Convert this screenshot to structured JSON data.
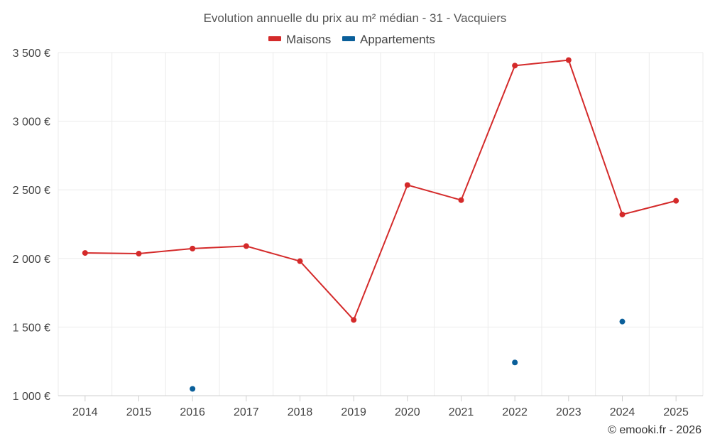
{
  "chart_data": {
    "type": "line",
    "title": "Evolution annuelle du prix au m² médian - 31 - Vacquiers",
    "categories": [
      "2014",
      "2015",
      "2016",
      "2017",
      "2018",
      "2019",
      "2020",
      "2021",
      "2022",
      "2023",
      "2024",
      "2025"
    ],
    "y_tick_labels": [
      "1 000 €",
      "1 500 €",
      "2 000 €",
      "2 500 €",
      "3 000 €",
      "3 500 €"
    ],
    "y_ticks": [
      1000,
      1500,
      2000,
      2500,
      3000,
      3500
    ],
    "ylim": [
      1000,
      3500
    ],
    "grid": true,
    "legend_position": "top-center",
    "series": [
      {
        "name": "Maisons",
        "color": "#d42a2a",
        "values": [
          2040,
          2035,
          2072,
          2090,
          1980,
          1552,
          2535,
          2425,
          3405,
          3445,
          2320,
          2420
        ]
      },
      {
        "name": "Appartements",
        "color": "#0a5f9a",
        "values": [
          null,
          null,
          1050,
          null,
          null,
          null,
          null,
          null,
          1242,
          null,
          1540,
          null
        ]
      }
    ]
  },
  "credit": "© emooki.fr - 2026"
}
